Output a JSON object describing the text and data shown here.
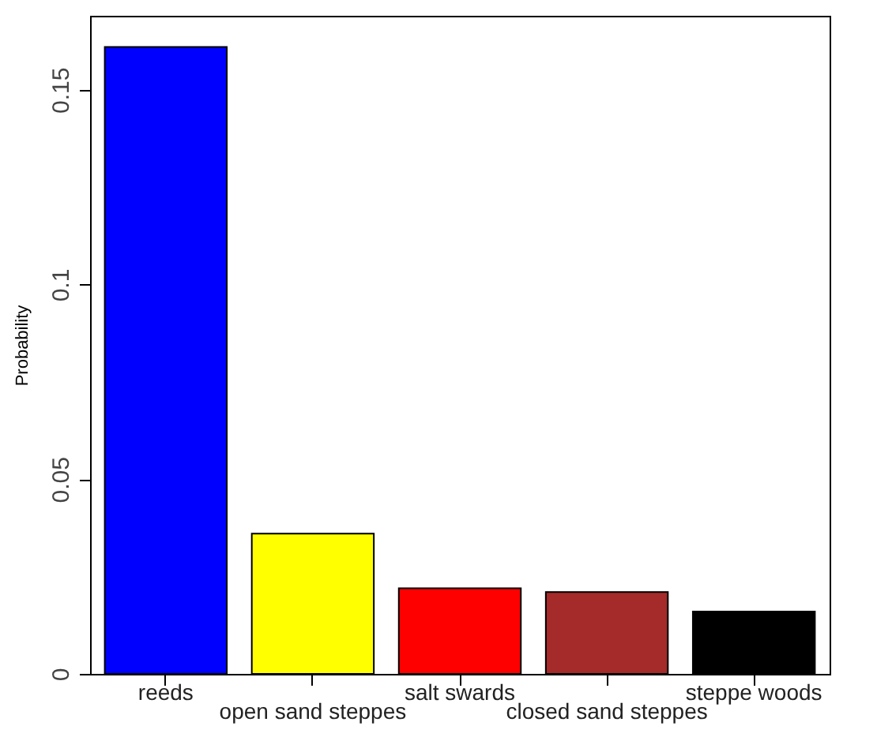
{
  "chart_data": {
    "type": "bar",
    "ylabel": "Probability",
    "categories": [
      "reeds",
      "open sand steppes",
      "salt swards",
      "closed sand steppes",
      "steppe woods"
    ],
    "values": [
      0.161,
      0.036,
      0.022,
      0.021,
      0.016
    ],
    "colors": [
      "#0000ff",
      "#ffff00",
      "#ff0000",
      "#a52a2a",
      "#000000"
    ],
    "ylim": [
      0,
      0.169
    ],
    "yticks": [
      0,
      0.05,
      0.1,
      0.15
    ],
    "grid": false
  }
}
